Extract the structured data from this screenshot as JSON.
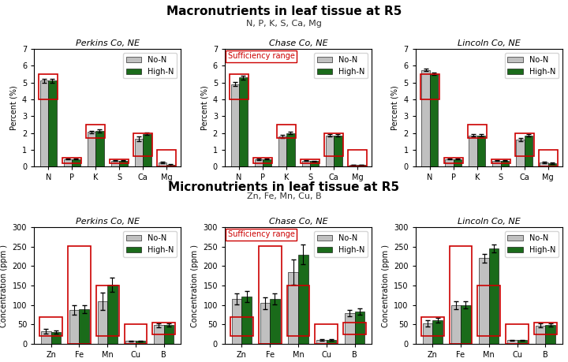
{
  "chart_data": [
    {
      "type": "bar",
      "section_title": "Macronutrients in leaf tissue at R5",
      "section_subtitle": "N, P, K, S, Ca, Mg",
      "title": "Perkins Co, NE",
      "categories": [
        "N",
        "P",
        "K",
        "S",
        "Ca",
        "Mg"
      ],
      "ylabel": "Percent (%)",
      "ylim": [
        0,
        7
      ],
      "yticks": [
        0,
        1,
        2,
        3,
        4,
        5,
        6,
        7
      ],
      "grid": false,
      "legend": "upper right",
      "series": [
        {
          "name": "No-N",
          "color": "#c0c0c0",
          "values": [
            5.1,
            0.45,
            2.05,
            0.35,
            1.65,
            0.25
          ],
          "errors": [
            0.12,
            0.04,
            0.08,
            0.03,
            0.12,
            0.04
          ]
        },
        {
          "name": "High-N",
          "color": "#1a6b1a",
          "values": [
            5.1,
            0.45,
            2.1,
            0.35,
            1.95,
            0.1
          ],
          "errors": [
            0.12,
            0.04,
            0.09,
            0.03,
            0.08,
            0.03
          ]
        }
      ],
      "sufficiency": {
        "color": "#cc0000",
        "ranges": [
          [
            4.0,
            5.5
          ],
          [
            0.2,
            0.5
          ],
          [
            1.7,
            2.5
          ],
          [
            0.2,
            0.45
          ],
          [
            0.6,
            2.0
          ],
          [
            0.0,
            1.0
          ]
        ]
      }
    },
    {
      "type": "bar",
      "title": "Chase Co, NE",
      "categories": [
        "N",
        "P",
        "K",
        "S",
        "Ca",
        "Mg"
      ],
      "ylabel": "Percent (%)",
      "ylim": [
        0,
        7
      ],
      "yticks": [
        0,
        1,
        2,
        3,
        4,
        5,
        6,
        7
      ],
      "grid": false,
      "legend": "upper right",
      "series": [
        {
          "name": "No-N",
          "color": "#c0c0c0",
          "values": [
            4.9,
            0.42,
            1.8,
            0.35,
            1.85,
            0.1
          ],
          "errors": [
            0.12,
            0.04,
            0.1,
            0.03,
            0.08,
            0.02
          ]
        },
        {
          "name": "High-N",
          "color": "#1a6b1a",
          "values": [
            5.3,
            0.45,
            2.0,
            0.32,
            1.85,
            0.1
          ],
          "errors": [
            0.12,
            0.04,
            0.08,
            0.03,
            0.07,
            0.02
          ]
        }
      ],
      "sufficiency": {
        "color": "#cc0000",
        "ranges": [
          [
            4.0,
            5.5
          ],
          [
            0.2,
            0.5
          ],
          [
            1.7,
            2.5
          ],
          [
            0.2,
            0.45
          ],
          [
            0.6,
            2.0
          ],
          [
            0.0,
            1.0
          ]
        ]
      },
      "annotations": [
        {
          "text": "Sufficiency range",
          "color": "#cc0000"
        }
      ]
    },
    {
      "type": "bar",
      "title": "Lincoln Co, NE",
      "categories": [
        "N",
        "P",
        "K",
        "S",
        "Ca",
        "Mg"
      ],
      "ylabel": "Percent (%)",
      "ylim": [
        0,
        7
      ],
      "yticks": [
        0,
        1,
        2,
        3,
        4,
        5,
        6,
        7
      ],
      "grid": false,
      "legend": "upper right",
      "series": [
        {
          "name": "No-N",
          "color": "#c0c0c0",
          "values": [
            5.75,
            0.45,
            1.85,
            0.35,
            1.6,
            0.25
          ],
          "errors": [
            0.07,
            0.04,
            0.07,
            0.03,
            0.09,
            0.04
          ]
        },
        {
          "name": "High-N",
          "color": "#1a6b1a",
          "values": [
            5.5,
            0.45,
            1.85,
            0.35,
            1.85,
            0.2
          ],
          "errors": [
            0.07,
            0.04,
            0.07,
            0.03,
            0.07,
            0.03
          ]
        }
      ],
      "sufficiency": {
        "color": "#cc0000",
        "ranges": [
          [
            4.0,
            5.5
          ],
          [
            0.2,
            0.5
          ],
          [
            1.7,
            2.5
          ],
          [
            0.2,
            0.45
          ],
          [
            0.6,
            2.0
          ],
          [
            0.0,
            1.0
          ]
        ]
      }
    },
    {
      "type": "bar",
      "section_title": "Micronutrients in leaf tissue at R5",
      "section_subtitle": "Zn, Fe, Mn, Cu, B",
      "title": "Perkins Co, NE",
      "categories": [
        "Zn",
        "Fe",
        "Mn",
        "Cu",
        "B"
      ],
      "ylabel": "Concentration (ppm )",
      "ylim": [
        0,
        300
      ],
      "yticks": [
        0,
        50,
        100,
        150,
        200,
        250,
        300
      ],
      "grid": false,
      "legend": "upper right",
      "series": [
        {
          "name": "No-N",
          "color": "#c0c0c0",
          "values": [
            32,
            88,
            110,
            8,
            48
          ],
          "errors": [
            6,
            12,
            22,
            1,
            5
          ]
        },
        {
          "name": "High-N",
          "color": "#1a6b1a",
          "values": [
            30,
            90,
            152,
            8,
            48
          ],
          "errors": [
            4,
            10,
            18,
            1,
            4
          ]
        }
      ],
      "sufficiency": {
        "color": "#cc0000",
        "ranges": [
          [
            20,
            70
          ],
          [
            0,
            252
          ],
          [
            20,
            150
          ],
          [
            0,
            50
          ],
          [
            25,
            55
          ]
        ]
      }
    },
    {
      "type": "bar",
      "title": "Chase Co, NE",
      "categories": [
        "Zn",
        "Fe",
        "Mn",
        "Cu",
        "B"
      ],
      "ylabel": "Concentration (ppm )",
      "ylim": [
        0,
        300
      ],
      "yticks": [
        0,
        50,
        100,
        150,
        200,
        250,
        300
      ],
      "grid": false,
      "legend": "upper right",
      "series": [
        {
          "name": "No-N",
          "color": "#c0c0c0",
          "values": [
            115,
            105,
            185,
            10,
            80
          ],
          "errors": [
            14,
            15,
            32,
            2,
            8
          ]
        },
        {
          "name": "High-N",
          "color": "#1a6b1a",
          "values": [
            122,
            115,
            230,
            10,
            83
          ],
          "errors": [
            14,
            14,
            25,
            2,
            8
          ]
        }
      ],
      "sufficiency": {
        "color": "#cc0000",
        "ranges": [
          [
            20,
            70
          ],
          [
            0,
            252
          ],
          [
            20,
            150
          ],
          [
            0,
            50
          ],
          [
            25,
            55
          ]
        ]
      },
      "annotations": [
        {
          "text": "Sufficiency range",
          "color": "#cc0000"
        }
      ]
    },
    {
      "type": "bar",
      "title": "Lincoln Co, NE",
      "categories": [
        "Zn",
        "Fe",
        "Mn",
        "Cu",
        "B"
      ],
      "ylabel": "Concentration (ppm )",
      "ylim": [
        0,
        300
      ],
      "yticks": [
        0,
        50,
        100,
        150,
        200,
        250,
        300
      ],
      "grid": false,
      "legend": "upper right",
      "series": [
        {
          "name": "No-N",
          "color": "#c0c0c0",
          "values": [
            52,
            100,
            220,
            10,
            47
          ],
          "errors": [
            8,
            10,
            12,
            1,
            5
          ]
        },
        {
          "name": "High-N",
          "color": "#1a6b1a",
          "values": [
            60,
            100,
            245,
            10,
            48
          ],
          "errors": [
            6,
            9,
            10,
            1,
            4
          ]
        }
      ],
      "sufficiency": {
        "color": "#cc0000",
        "ranges": [
          [
            20,
            70
          ],
          [
            0,
            252
          ],
          [
            20,
            150
          ],
          [
            0,
            50
          ],
          [
            25,
            55
          ]
        ]
      }
    }
  ]
}
